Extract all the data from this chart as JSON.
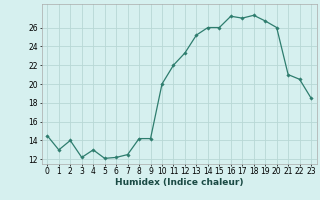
{
  "x": [
    0,
    1,
    2,
    3,
    4,
    5,
    6,
    7,
    8,
    9,
    10,
    11,
    12,
    13,
    14,
    15,
    16,
    17,
    18,
    19,
    20,
    21,
    22,
    23
  ],
  "y": [
    14.5,
    13.0,
    14.0,
    12.2,
    13.0,
    12.1,
    12.2,
    12.5,
    14.2,
    14.2,
    20.0,
    22.0,
    23.3,
    25.2,
    26.0,
    26.0,
    27.2,
    27.0,
    27.3,
    26.7,
    26.0,
    21.0,
    20.5,
    18.5
  ],
  "line_color": "#2e7d6e",
  "marker": "D",
  "marker_size": 1.8,
  "bg_color": "#d6f0ef",
  "grid_color": "#b8d8d5",
  "xlabel": "Humidex (Indice chaleur)",
  "xlim": [
    -0.5,
    23.5
  ],
  "ylim": [
    11.5,
    28.5
  ],
  "yticks": [
    12,
    14,
    16,
    18,
    20,
    22,
    24,
    26
  ],
  "xticks": [
    0,
    1,
    2,
    3,
    4,
    5,
    6,
    7,
    8,
    9,
    10,
    11,
    12,
    13,
    14,
    15,
    16,
    17,
    18,
    19,
    20,
    21,
    22,
    23
  ],
  "xlabel_fontsize": 6.5,
  "tick_fontsize": 5.5
}
